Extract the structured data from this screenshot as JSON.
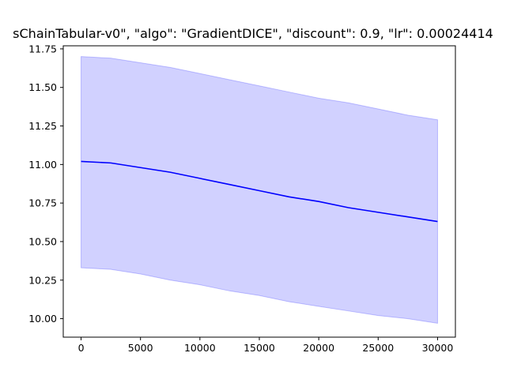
{
  "chart_data": {
    "type": "line",
    "title": "sChainTabular-v0\", \"algo\": \"GradientDICE\", \"discount\": 0.9, \"lr\": 0.00024414",
    "xlabel": "",
    "ylabel": "",
    "xlim": [
      -1500,
      31500
    ],
    "ylim": [
      9.88,
      11.77
    ],
    "x_ticks": [
      0,
      5000,
      10000,
      15000,
      20000,
      25000,
      30000
    ],
    "y_ticks": [
      10.0,
      10.25,
      10.5,
      10.75,
      11.0,
      11.25,
      11.5,
      11.75
    ],
    "x_tick_labels": [
      "0",
      "5000",
      "10000",
      "15000",
      "20000",
      "25000",
      "30000"
    ],
    "y_tick_labels": [
      "10.00",
      "10.25",
      "10.50",
      "10.75",
      "11.00",
      "11.25",
      "11.50",
      "11.75"
    ],
    "grid": false,
    "legend": "none",
    "x": [
      0,
      2500,
      5000,
      7500,
      10000,
      12500,
      15000,
      17500,
      20000,
      22500,
      25000,
      27500,
      30000
    ],
    "series": [
      {
        "values": [
          11.02,
          11.01,
          10.98,
          10.95,
          10.91,
          10.87,
          10.83,
          10.79,
          10.76,
          10.72,
          10.69,
          10.66,
          10.63
        ],
        "lower": [
          10.33,
          10.32,
          10.29,
          10.25,
          10.22,
          10.18,
          10.15,
          10.11,
          10.08,
          10.05,
          10.02,
          10.0,
          9.97
        ],
        "upper": [
          11.7,
          11.69,
          11.66,
          11.63,
          11.59,
          11.55,
          11.51,
          11.47,
          11.43,
          11.4,
          11.36,
          11.32,
          11.29
        ]
      }
    ],
    "colors": {
      "line": "#0000ff",
      "band": "#0000ff",
      "band_opacity": 0.18
    }
  }
}
